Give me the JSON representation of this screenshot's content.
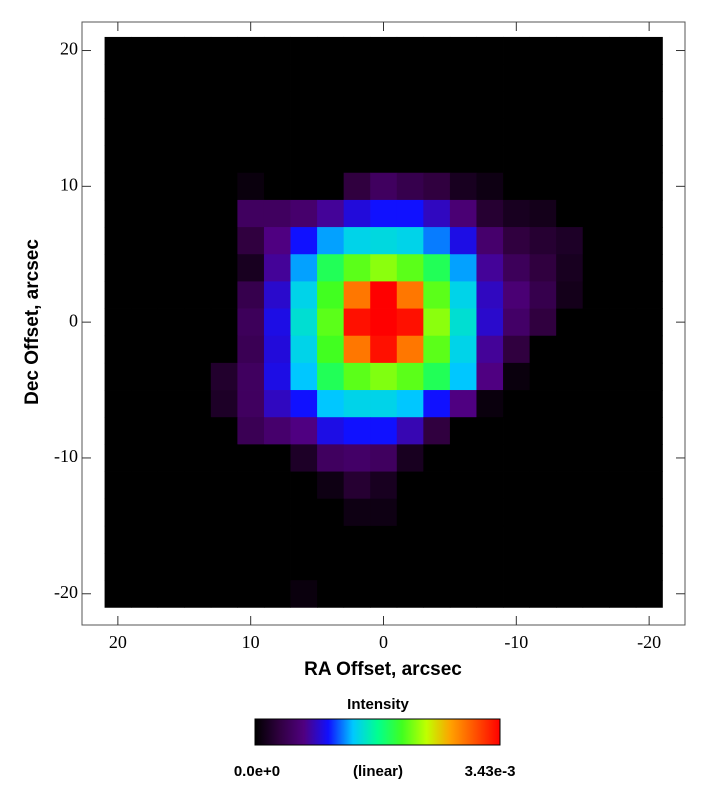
{
  "chart_data": {
    "type": "heatmap",
    "xlabel": "RA Offset, arcsec",
    "ylabel": "Dec Offset, arcsec",
    "x": [
      20,
      18,
      16,
      14,
      12,
      10,
      8,
      6,
      4,
      2,
      0,
      -2,
      -4,
      -6,
      -8,
      -10,
      -12,
      -14,
      -16,
      -18,
      -20
    ],
    "y": [
      20,
      18,
      16,
      14,
      12,
      10,
      8,
      6,
      4,
      2,
      0,
      -2,
      -4,
      -6,
      -8,
      -10,
      -12,
      -14,
      -16,
      -18,
      -20
    ],
    "z": [
      [
        0,
        0,
        0,
        0,
        0,
        0,
        0,
        0,
        0,
        0,
        0,
        0,
        0,
        0,
        0,
        0,
        0,
        0,
        0,
        0,
        0
      ],
      [
        0,
        0,
        0,
        0,
        0,
        0,
        0,
        0,
        0,
        0,
        0,
        0,
        0,
        0,
        0,
        0,
        0,
        0,
        0,
        0,
        0
      ],
      [
        0,
        0,
        0,
        0,
        0,
        0,
        0,
        0,
        0,
        0,
        0,
        0,
        0,
        0,
        0,
        0,
        0,
        0,
        0,
        0,
        0
      ],
      [
        0,
        0,
        0,
        0,
        0,
        0,
        0,
        0,
        0,
        0,
        0,
        0,
        0,
        0,
        0,
        0,
        0,
        0,
        0,
        0,
        0
      ],
      [
        0,
        0,
        0,
        0,
        0,
        0,
        0,
        0,
        0,
        0,
        0,
        0,
        0,
        0,
        0,
        0,
        0,
        0,
        0,
        0,
        0
      ],
      [
        0,
        0,
        0,
        0,
        0,
        7e-05,
        0,
        0,
        0,
        0.00034,
        0.00051,
        0.00041,
        0.00034,
        0.00017,
        0.0001,
        0,
        0,
        0,
        0,
        0,
        0
      ],
      [
        0,
        0,
        0,
        0,
        0,
        0.00051,
        0.00051,
        0.00058,
        0.00075,
        0.00093,
        0.00103,
        0.00103,
        0.00086,
        0.00062,
        0.00027,
        0.00017,
        0.00014,
        0,
        0,
        0,
        0
      ],
      [
        0,
        0,
        0,
        0,
        0,
        0.00034,
        0.00069,
        0.00103,
        0.0013,
        0.00144,
        0.00147,
        0.00144,
        0.00123,
        0.00096,
        0.00058,
        0.00034,
        0.00027,
        0.00021,
        0,
        0,
        0
      ],
      [
        0,
        0,
        0,
        0,
        0,
        0.00017,
        0.00075,
        0.0013,
        0.00189,
        0.00213,
        0.00226,
        0.00213,
        0.00189,
        0.0013,
        0.00075,
        0.00048,
        0.00034,
        0.00017,
        0,
        0,
        0
      ],
      [
        0,
        0,
        0,
        0,
        0,
        0.00041,
        0.00089,
        0.00144,
        0.00206,
        0.00292,
        0.00343,
        0.00292,
        0.00213,
        0.00144,
        0.00086,
        0.00062,
        0.00041,
        0.00014,
        0,
        0,
        0
      ],
      [
        0,
        0,
        0,
        0,
        0,
        0.00048,
        0.00096,
        0.00151,
        0.00213,
        0.00336,
        0.00343,
        0.00336,
        0.00226,
        0.00151,
        0.00089,
        0.00055,
        0.00034,
        0,
        0,
        0,
        0
      ],
      [
        0,
        0,
        0,
        0,
        0,
        0.00045,
        0.00093,
        0.00144,
        0.00206,
        0.00292,
        0.00336,
        0.00292,
        0.00213,
        0.00144,
        0.00075,
        0.00034,
        0,
        0,
        0,
        0,
        0
      ],
      [
        0,
        0,
        0,
        0,
        0.00024,
        0.00051,
        0.00096,
        0.00137,
        0.00189,
        0.00213,
        0.00223,
        0.00213,
        0.00189,
        0.00137,
        0.00069,
        7e-05,
        0,
        0,
        0,
        0,
        0
      ],
      [
        0,
        0,
        0,
        0,
        0.00021,
        0.00051,
        0.00086,
        0.00103,
        0.00137,
        0.00144,
        0.00144,
        0.00137,
        0.00103,
        0.00069,
        7e-05,
        0,
        0,
        0,
        0,
        0,
        0
      ],
      [
        0,
        0,
        0,
        0,
        0,
        0.00045,
        0.00058,
        0.00069,
        0.00096,
        0.00103,
        0.00103,
        0.00082,
        0.00034,
        0,
        0,
        0,
        0,
        0,
        0,
        0,
        0
      ],
      [
        0,
        0,
        0,
        0,
        0,
        0,
        0,
        0.00021,
        0.00051,
        0.00055,
        0.00051,
        0.00017,
        0,
        0,
        0,
        0,
        0,
        0,
        0,
        0,
        0
      ],
      [
        0,
        0,
        0,
        0,
        0,
        0,
        0,
        0,
        0.0001,
        0.00027,
        0.00017,
        0,
        0,
        0,
        0,
        0,
        0,
        0,
        0,
        0,
        0
      ],
      [
        0,
        0,
        0,
        0,
        0,
        0,
        0,
        0,
        0,
        0.0001,
        0.0001,
        0,
        0,
        0,
        0,
        0,
        0,
        0,
        0,
        0,
        0
      ],
      [
        0,
        0,
        0,
        0,
        0,
        0,
        0,
        0,
        0,
        0,
        0,
        0,
        0,
        0,
        0,
        0,
        0,
        0,
        0,
        0,
        0
      ],
      [
        0,
        0,
        0,
        0,
        0,
        0,
        0,
        0,
        0,
        0,
        0,
        0,
        0,
        0,
        0,
        0,
        0,
        0,
        0,
        0,
        0
      ],
      [
        0,
        0,
        0,
        0,
        0,
        0,
        0,
        7e-05,
        0,
        0,
        0,
        0,
        0,
        0,
        0,
        0,
        0,
        0,
        0,
        0,
        0
      ]
    ],
    "xlim": [
      22.7,
      -22.7
    ],
    "ylim": [
      -22.3,
      22.1
    ],
    "xticks": [
      20,
      10,
      0,
      -10,
      -20
    ],
    "yticks": [
      20,
      10,
      0,
      -10,
      -20
    ],
    "colorbar": {
      "title": "Intensity",
      "scale_label": "(linear)",
      "zlim": [
        0,
        0.00343
      ],
      "ticks": [
        {
          "value": 0,
          "label": "0.0e+0"
        },
        {
          "value": 0.00343,
          "label": "3.43e-3"
        }
      ]
    },
    "colormap": [
      "#000000",
      "#300040",
      "#500080",
      "#1010ff",
      "#00c8ff",
      "#00ff90",
      "#40ff20",
      "#c0ff00",
      "#ffa000",
      "#ff5000",
      "#ff0000"
    ]
  }
}
